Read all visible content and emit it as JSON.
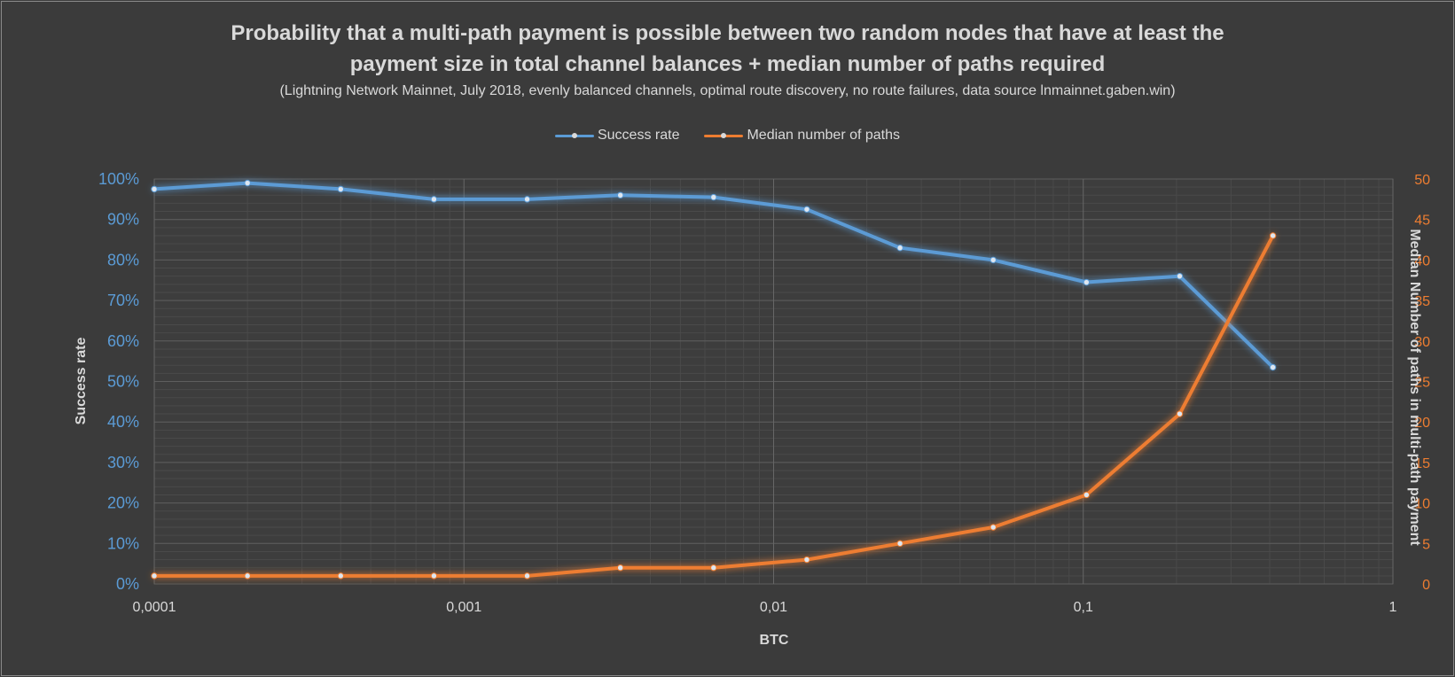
{
  "chart_data": {
    "type": "line",
    "title": "Probability that a multi-path payment is possible between two random nodes that have at least the payment size in total channel balances + median number of paths required",
    "title_line1": "Probability that a multi-path payment is possible between two random nodes that have at least the",
    "title_line2": "payment size in total channel balances + median number of paths required",
    "subtitle": "(Lightning Network Mainnet, July 2018, evenly balanced channels, optimal route discovery, no route failures, data source lnmainnet.gaben.win)",
    "xlabel": "BTC",
    "ylabel_left": "Success rate",
    "ylabel_right": "Median Number of paths in multi-path payment",
    "x_scale": "log",
    "xlim": [
      0.0001,
      1
    ],
    "x_tick_labels": [
      "0,0001",
      "0,001",
      "0,01",
      "0,1",
      "1"
    ],
    "ylim_left": [
      0,
      100
    ],
    "y_left_tick_labels": [
      "0%",
      "10%",
      "20%",
      "30%",
      "40%",
      "50%",
      "60%",
      "70%",
      "80%",
      "90%",
      "100%"
    ],
    "ylim_right": [
      0,
      50
    ],
    "y_right_tick_labels": [
      "0",
      "5",
      "10",
      "15",
      "20",
      "25",
      "30",
      "35",
      "40",
      "45",
      "50"
    ],
    "grid": true,
    "legend_position": "top",
    "x": [
      0.0001,
      0.0002,
      0.0004,
      0.0008,
      0.0016,
      0.0032,
      0.0064,
      0.0128,
      0.0256,
      0.0512,
      0.1024,
      0.2048,
      0.4096
    ],
    "series": [
      {
        "name": "Success rate",
        "axis": "left",
        "color": "#5b9bd5",
        "values": [
          97.5,
          99,
          97.5,
          95,
          95,
          96,
          95.5,
          92.5,
          83,
          80,
          74.5,
          76,
          53.5
        ]
      },
      {
        "name": "Median number of paths",
        "axis": "right",
        "color": "#ed7d31",
        "values": [
          1,
          1,
          1,
          1,
          1,
          2,
          2,
          3,
          5,
          7,
          11,
          21,
          43
        ]
      }
    ]
  }
}
